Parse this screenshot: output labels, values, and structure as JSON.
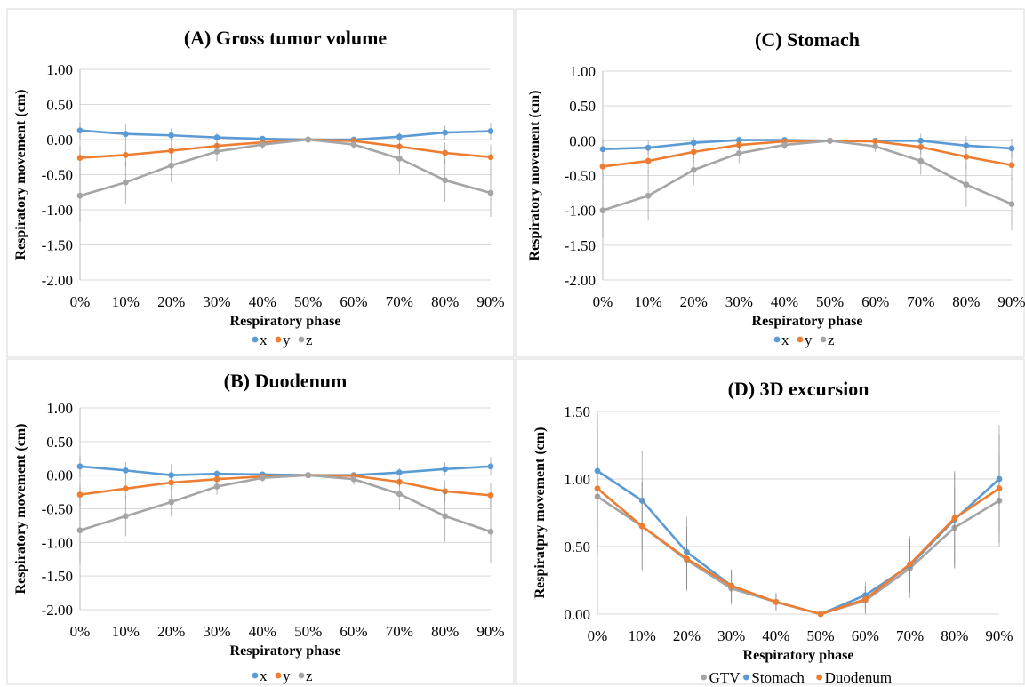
{
  "colors": {
    "x": "#5b9bd5",
    "y": "#ed7d31",
    "z": "#a5a5a5",
    "grid": "#d9d9d9",
    "errorbar": "#7f7f7f"
  },
  "chart_data": [
    {
      "type": "line",
      "title": "(A) Gross tumor volume",
      "xlabel": "Respiratory phase",
      "ylabel": "Respiratory movement  (cm)",
      "categories": [
        "0%",
        "10%",
        "20%",
        "30%",
        "40%",
        "50%",
        "60%",
        "70%",
        "80%",
        "90%"
      ],
      "ylim": [
        -2.0,
        1.0
      ],
      "yticks": [
        "1.00",
        "0.50",
        "0.00",
        "-0.50",
        "-1.00",
        "-1.50",
        "-2.00"
      ],
      "grid": true,
      "legend": "bottom",
      "series": [
        {
          "name": "x",
          "values": [
            0.13,
            0.08,
            0.06,
            0.03,
            0.01,
            0.0,
            0.0,
            0.04,
            0.1,
            0.12
          ],
          "err": [
            0.12,
            0.14,
            0.1,
            0.06,
            0.03,
            0.0,
            0.03,
            0.06,
            0.1,
            0.12
          ]
        },
        {
          "name": "y",
          "values": [
            -0.26,
            -0.22,
            -0.16,
            -0.09,
            -0.04,
            0.0,
            -0.02,
            -0.1,
            -0.19,
            -0.25
          ],
          "err": [
            0.18,
            0.16,
            0.12,
            0.08,
            0.04,
            0.0,
            0.03,
            0.1,
            0.15,
            0.18
          ]
        },
        {
          "name": "z",
          "values": [
            -0.8,
            -0.61,
            -0.37,
            -0.17,
            -0.07,
            0.0,
            -0.07,
            -0.27,
            -0.58,
            -0.76
          ],
          "err": [
            0.38,
            0.3,
            0.24,
            0.14,
            0.07,
            0.0,
            0.07,
            0.22,
            0.3,
            0.34
          ]
        }
      ]
    },
    {
      "type": "line",
      "title": "(C) Stomach",
      "xlabel": "Respiratory phase",
      "ylabel": "Respiratory movement (cm)",
      "categories": [
        "0%",
        "10%",
        "20%",
        "30%",
        "40%",
        "50%",
        "60%",
        "70%",
        "80%",
        "90%"
      ],
      "ylim": [
        -2.0,
        1.0
      ],
      "yticks": [
        "1.00",
        "0.50",
        "0.00",
        "-0.50",
        "-1.00",
        "-1.50",
        "-2.00"
      ],
      "grid": true,
      "legend": "bottom",
      "series": [
        {
          "name": "x",
          "values": [
            -0.12,
            -0.1,
            -0.03,
            0.01,
            0.01,
            0.0,
            0.0,
            0.0,
            -0.07,
            -0.11
          ],
          "err": [
            0.14,
            0.1,
            0.08,
            0.05,
            0.03,
            0.0,
            0.02,
            0.1,
            0.14,
            0.14
          ]
        },
        {
          "name": "y",
          "values": [
            -0.37,
            -0.29,
            -0.16,
            -0.06,
            -0.01,
            0.0,
            -0.01,
            -0.09,
            -0.23,
            -0.35
          ],
          "err": [
            0.22,
            0.18,
            0.14,
            0.08,
            0.04,
            0.0,
            0.04,
            0.1,
            0.18,
            0.22
          ]
        },
        {
          "name": "z",
          "values": [
            -1.0,
            -0.79,
            -0.42,
            -0.18,
            -0.06,
            0.0,
            -0.08,
            -0.29,
            -0.63,
            -0.91
          ],
          "err": [
            0.4,
            0.36,
            0.22,
            0.14,
            0.06,
            0.0,
            0.08,
            0.2,
            0.32,
            0.38
          ]
        }
      ]
    },
    {
      "type": "line",
      "title": "(B) Duodenum",
      "xlabel": "Respiratory phase",
      "ylabel": "Respiratory movement (cm)",
      "categories": [
        "0%",
        "10%",
        "20%",
        "30%",
        "40%",
        "50%",
        "60%",
        "70%",
        "80%",
        "90%"
      ],
      "ylim": [
        -2.0,
        1.0
      ],
      "yticks": [
        "1.00",
        "0.50",
        "0.00",
        "-0.50",
        "-1.00",
        "-1.50",
        "-2.00"
      ],
      "grid": true,
      "legend": "bottom",
      "series": [
        {
          "name": "x",
          "values": [
            0.13,
            0.07,
            0.0,
            0.02,
            0.01,
            0.0,
            0.0,
            0.04,
            0.09,
            0.13
          ],
          "err": [
            0.16,
            0.12,
            0.16,
            0.06,
            0.03,
            0.0,
            0.03,
            0.06,
            0.1,
            0.14
          ]
        },
        {
          "name": "y",
          "values": [
            -0.29,
            -0.2,
            -0.11,
            -0.06,
            -0.02,
            0.0,
            -0.01,
            -0.1,
            -0.24,
            -0.3
          ],
          "err": [
            0.18,
            0.16,
            0.1,
            0.06,
            0.03,
            0.0,
            0.03,
            0.08,
            0.16,
            0.18
          ]
        },
        {
          "name": "z",
          "values": [
            -0.82,
            -0.61,
            -0.4,
            -0.17,
            -0.04,
            0.0,
            -0.06,
            -0.28,
            -0.61,
            -0.84
          ],
          "err": [
            0.5,
            0.3,
            0.22,
            0.12,
            0.06,
            0.0,
            0.08,
            0.24,
            0.38,
            0.46
          ]
        }
      ]
    },
    {
      "type": "line",
      "title": "(D) 3D excursion",
      "xlabel": "Respiratory phase",
      "ylabel": "Respiratpry movement (cm)",
      "categories": [
        "0%",
        "10%",
        "20%",
        "30%",
        "40%",
        "50%",
        "60%",
        "70%",
        "80%",
        "90%"
      ],
      "ylim": [
        0.0,
        1.5
      ],
      "yticks": [
        "1.50",
        "1.00",
        "0.50",
        "0.00"
      ],
      "grid": true,
      "legend": "bottom",
      "series": [
        {
          "name": "GTV",
          "values": [
            0.87,
            0.65,
            0.4,
            0.19,
            0.09,
            0.0,
            0.1,
            0.34,
            0.64,
            0.84
          ],
          "err": [
            0.42,
            0.33,
            0.22,
            0.12,
            0.06,
            0.0,
            0.1,
            0.22,
            0.3,
            0.34
          ]
        },
        {
          "name": "Stomach",
          "values": [
            1.06,
            0.84,
            0.46,
            0.21,
            0.09,
            0.0,
            0.14,
            0.36,
            0.7,
            1.0
          ],
          "err": [
            0.4,
            0.37,
            0.26,
            0.12,
            0.07,
            0.0,
            0.1,
            0.2,
            0.36,
            0.4
          ]
        },
        {
          "name": "Duodenum",
          "values": [
            0.93,
            0.65,
            0.41,
            0.21,
            0.09,
            0.0,
            0.11,
            0.37,
            0.71,
            0.93
          ],
          "err": [
            0.44,
            0.32,
            0.24,
            0.12,
            0.06,
            0.0,
            0.1,
            0.21,
            0.34,
            0.4
          ]
        }
      ]
    }
  ]
}
